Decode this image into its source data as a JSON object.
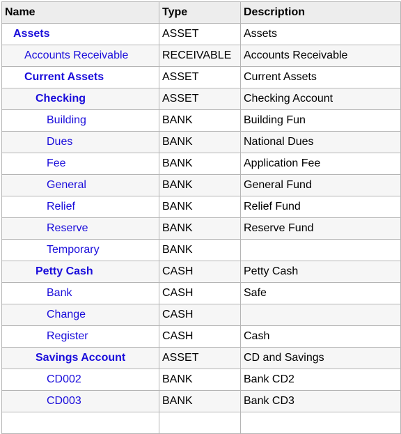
{
  "header": {
    "name": "Name",
    "type": "Type",
    "description": "Description"
  },
  "rows": [
    {
      "name": "Assets",
      "type": "ASSET",
      "description": "Assets",
      "level": 1,
      "placeholder": true
    },
    {
      "name": "Accounts Receivable",
      "type": "RECEIVABLE",
      "description": "Accounts Receivable",
      "level": 2,
      "placeholder": false
    },
    {
      "name": "Current Assets",
      "type": "ASSET",
      "description": "Current Assets",
      "level": 2,
      "placeholder": true
    },
    {
      "name": "Checking",
      "type": "ASSET",
      "description": "Checking Account",
      "level": 3,
      "placeholder": true
    },
    {
      "name": "Building",
      "type": "BANK",
      "description": "Building Fun",
      "level": 4,
      "placeholder": false
    },
    {
      "name": "Dues",
      "type": "BANK",
      "description": "National Dues",
      "level": 4,
      "placeholder": false
    },
    {
      "name": "Fee",
      "type": "BANK",
      "description": "Application Fee",
      "level": 4,
      "placeholder": false
    },
    {
      "name": "General",
      "type": "BANK",
      "description": "General Fund",
      "level": 4,
      "placeholder": false
    },
    {
      "name": "Relief",
      "type": "BANK",
      "description": "Relief Fund",
      "level": 4,
      "placeholder": false
    },
    {
      "name": "Reserve",
      "type": "BANK",
      "description": "Reserve Fund",
      "level": 4,
      "placeholder": false
    },
    {
      "name": "Temporary",
      "type": "BANK",
      "description": "",
      "level": 4,
      "placeholder": false
    },
    {
      "name": "Petty Cash",
      "type": "CASH",
      "description": "Petty Cash",
      "level": 3,
      "placeholder": true
    },
    {
      "name": "Bank",
      "type": "CASH",
      "description": "Safe",
      "level": 4,
      "placeholder": false
    },
    {
      "name": "Change",
      "type": "CASH",
      "description": "",
      "level": 4,
      "placeholder": false
    },
    {
      "name": "Register",
      "type": "CASH",
      "description": "Cash",
      "level": 4,
      "placeholder": false
    },
    {
      "name": "Savings Account",
      "type": "ASSET",
      "description": "CD and Savings",
      "level": 3,
      "placeholder": true
    },
    {
      "name": "CD002",
      "type": "BANK",
      "description": "Bank CD2",
      "level": 4,
      "placeholder": false
    },
    {
      "name": "CD003",
      "type": "BANK",
      "description": "Bank CD3",
      "level": 4,
      "placeholder": false
    },
    {
      "name": "",
      "type": "",
      "description": "",
      "level": 4,
      "placeholder": false
    }
  ]
}
